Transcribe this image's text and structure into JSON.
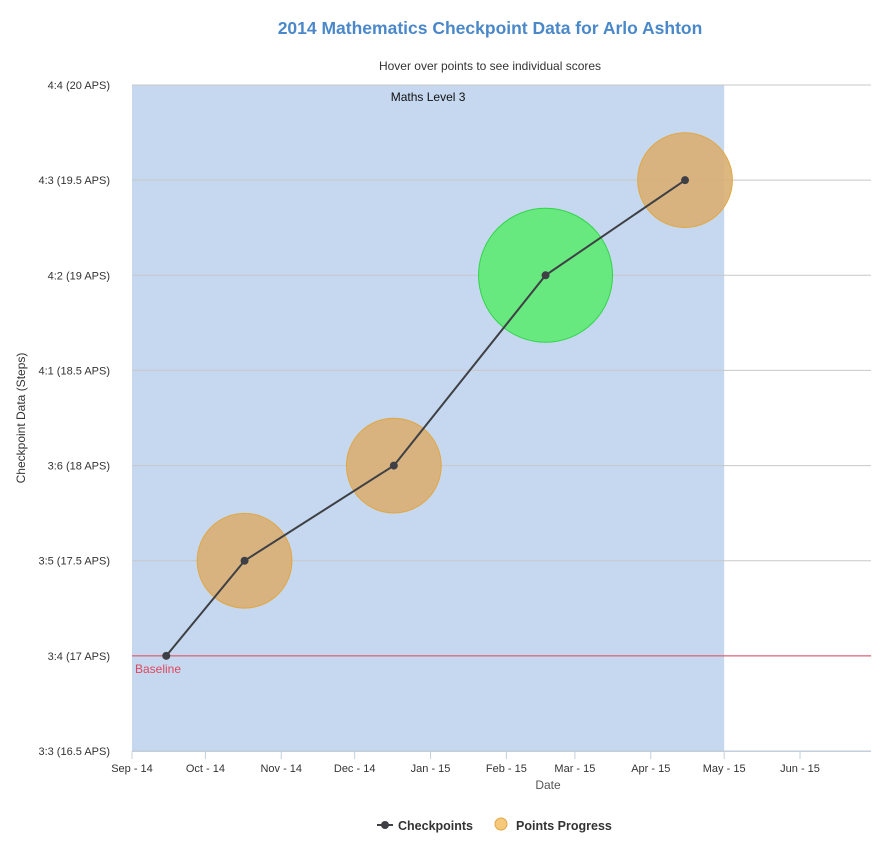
{
  "chart_data": {
    "type": "line",
    "title": "2014 Mathematics Checkpoint Data for Arlo Ashton",
    "subtitle": "Hover over points to see individual scores",
    "xlabel": "Date",
    "ylabel": "Checkpoint Data (Steps)",
    "x_ticks": [
      "Sep - 14",
      "Oct - 14",
      "Nov - 14",
      "Dec - 14",
      "Jan - 15",
      "Feb - 15",
      "Mar - 15",
      "Apr - 15",
      "May - 15",
      "Jun - 15"
    ],
    "x_range": [
      "2014-09-01",
      "2015-06-30"
    ],
    "ylim": [
      16.5,
      20
    ],
    "y_ticks": [
      {
        "value": 16.5,
        "label": "3:3 (16.5 APS)"
      },
      {
        "value": 17,
        "label": "3:4 (17 APS)"
      },
      {
        "value": 17.5,
        "label": "3:5 (17.5 APS)"
      },
      {
        "value": 18,
        "label": "3:6 (18 APS)"
      },
      {
        "value": 18.5,
        "label": "4:1 (18.5 APS)"
      },
      {
        "value": 19,
        "label": "4:2 (19 APS)"
      },
      {
        "value": 19.5,
        "label": "4:3 (19.5 APS)"
      },
      {
        "value": 20,
        "label": "4:4 (20 APS)"
      }
    ],
    "grid": true,
    "band": {
      "label": "Maths Level 3",
      "from": "2014-09-01",
      "to": "2015-05-01",
      "color": "#c5d8ef"
    },
    "baseline": {
      "label": "Baseline",
      "value": 17,
      "color": "#e0475f"
    },
    "series": [
      {
        "name": "Checkpoints",
        "type": "line",
        "color": "#3f4045",
        "points": [
          {
            "date": "2014-09-15",
            "value": 17
          },
          {
            "date": "2014-10-17",
            "value": 17.5
          },
          {
            "date": "2014-12-17",
            "value": 18
          },
          {
            "date": "2015-02-17",
            "value": 19
          },
          {
            "date": "2015-04-15",
            "value": 19.5
          }
        ]
      },
      {
        "name": "Points Progress",
        "type": "bubble",
        "color": "#e3b46c",
        "points": [
          {
            "date": "2014-10-17",
            "value": 17.5,
            "size": 2,
            "color": "#d9af72"
          },
          {
            "date": "2014-12-17",
            "value": 18,
            "size": 2,
            "color": "#d9af72"
          },
          {
            "date": "2015-02-17",
            "value": 19,
            "size": 4,
            "color": "#5deb72"
          },
          {
            "date": "2015-04-15",
            "value": 19.5,
            "size": 2,
            "color": "#d9af72"
          }
        ]
      }
    ],
    "legend": {
      "position": "bottom-center",
      "items": [
        "Checkpoints",
        "Points Progress"
      ]
    }
  }
}
